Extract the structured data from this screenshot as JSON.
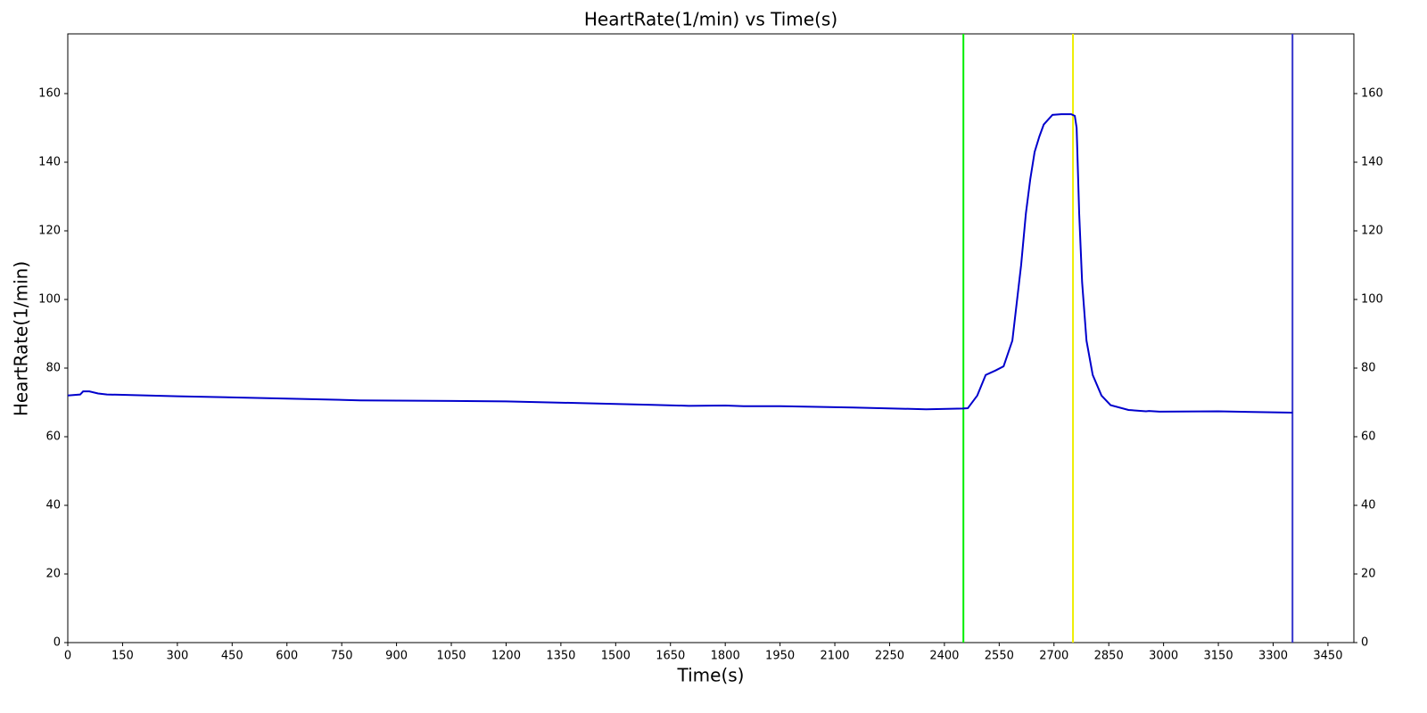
{
  "chart_data": {
    "type": "line",
    "title": "HeartRate(1/min) vs Time(s)",
    "x_label": "Time(s)",
    "y_label": "HeartRate(1/min)",
    "x": [
      0,
      34,
      42,
      59,
      83,
      107,
      150,
      300,
      600,
      800,
      1200,
      1400,
      1600,
      1700,
      1800,
      1850,
      1950,
      2150,
      2350,
      2450,
      2464,
      2490,
      2513,
      2540,
      2562,
      2586,
      2610,
      2623,
      2635,
      2647,
      2660,
      2672,
      2696,
      2720,
      2747,
      2757,
      2762,
      2769,
      2777,
      2789,
      2806,
      2830,
      2855,
      2904,
      2952,
      2960,
      2989,
      3150,
      3353
    ],
    "series": [
      {
        "name": "HeartRate",
        "color": "#0000cc",
        "values": [
          72,
          72.3,
          73.2,
          73.2,
          72.6,
          72.3,
          72.2,
          71.8,
          71.1,
          70.6,
          70.3,
          69.8,
          69.3,
          69.0,
          69.1,
          68.9,
          68.9,
          68.5,
          68.0,
          68.2,
          68.3,
          72,
          78,
          79.3,
          80.5,
          88,
          110,
          125,
          135,
          143,
          147.5,
          151,
          153.8,
          154,
          154,
          153.5,
          150,
          125,
          105,
          88,
          78,
          72,
          69.2,
          67.8,
          67.4,
          67.5,
          67.3,
          67.4,
          67.0
        ]
      }
    ],
    "vlines": [
      {
        "x": 2452,
        "color": "#00ee00"
      },
      {
        "x": 2752,
        "color": "#eeee00"
      },
      {
        "x": 3353,
        "color": "#3333cc"
      }
    ],
    "xlim": [
      0,
      3521
    ],
    "ylim": [
      0,
      177.4
    ],
    "xticks": [
      0,
      150,
      300,
      450,
      600,
      750,
      900,
      1050,
      1200,
      1350,
      1500,
      1650,
      1800,
      1950,
      2100,
      2250,
      2400,
      2550,
      2700,
      2850,
      3000,
      3150,
      3300,
      3450
    ],
    "yticks": [
      0,
      20,
      40,
      60,
      80,
      100,
      120,
      140,
      160
    ],
    "right_axis": true
  }
}
